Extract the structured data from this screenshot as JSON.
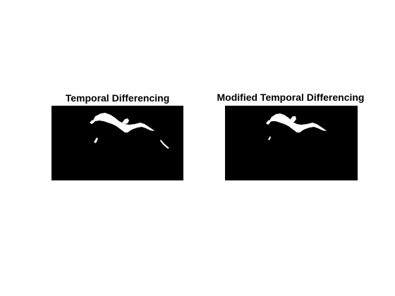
{
  "figure": {
    "background_color": "#ffffff",
    "panels": [
      {
        "title": "Temporal Differencing",
        "image_description": "binary mask: white bird silhouette on black with wing-tip artifacts",
        "foreground_color": "#ffffff",
        "background_color": "#000000"
      },
      {
        "title": "Modified Temporal Differencing",
        "image_description": "binary mask: white bird silhouette on black, fewer artifacts",
        "foreground_color": "#ffffff",
        "background_color": "#000000"
      }
    ]
  }
}
